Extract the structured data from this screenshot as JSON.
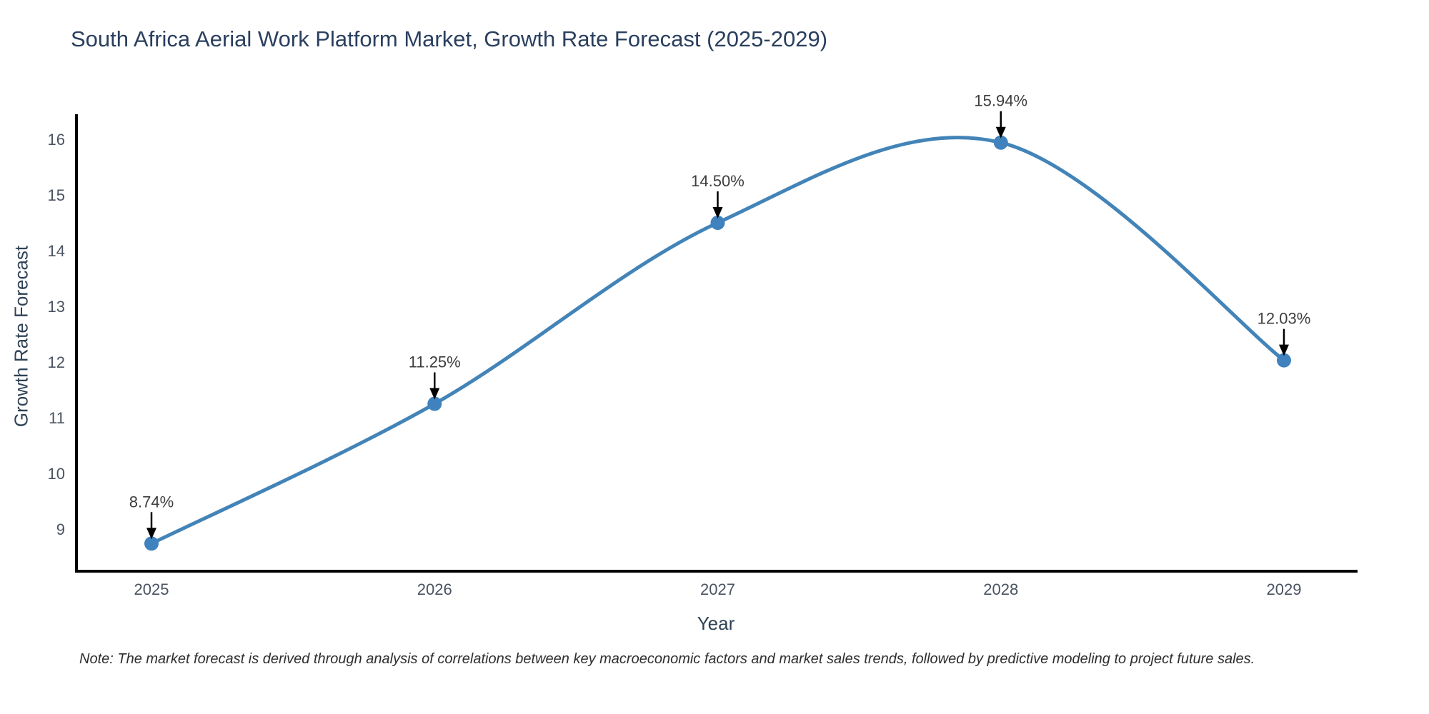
{
  "title": "South Africa Aerial Work Platform Market, Growth Rate Forecast (2025-2029)",
  "note": "Note: The market forecast is derived through analysis of correlations between key macroeconomic factors and market sales trends, followed by predictive modeling to project future sales.",
  "chart_data": {
    "type": "line",
    "line_shape": "spline",
    "title": "South Africa Aerial Work Platform Market, Growth Rate Forecast (2025-2029)",
    "xlabel": "Year",
    "ylabel": "Growth Rate Forecast",
    "x": [
      2025,
      2026,
      2027,
      2028,
      2029
    ],
    "y": [
      8.74,
      11.25,
      14.5,
      15.94,
      12.03
    ],
    "point_labels": [
      "8.74%",
      "11.25%",
      "14.50%",
      "15.94%",
      "12.03%"
    ],
    "xticks": [
      "2025",
      "2026",
      "2027",
      "2028",
      "2029"
    ],
    "yticks": [
      9,
      10,
      11,
      12,
      13,
      14,
      15,
      16
    ],
    "xlim": [
      2024.735,
      2029.26
    ],
    "ylim": [
      8.244,
      16.449
    ],
    "grid": false,
    "legend": false,
    "line_color": "#4384b8",
    "marker_color": "#3f82bd",
    "axis_color": "#000000",
    "annotation_arrow_color": "#000000"
  }
}
